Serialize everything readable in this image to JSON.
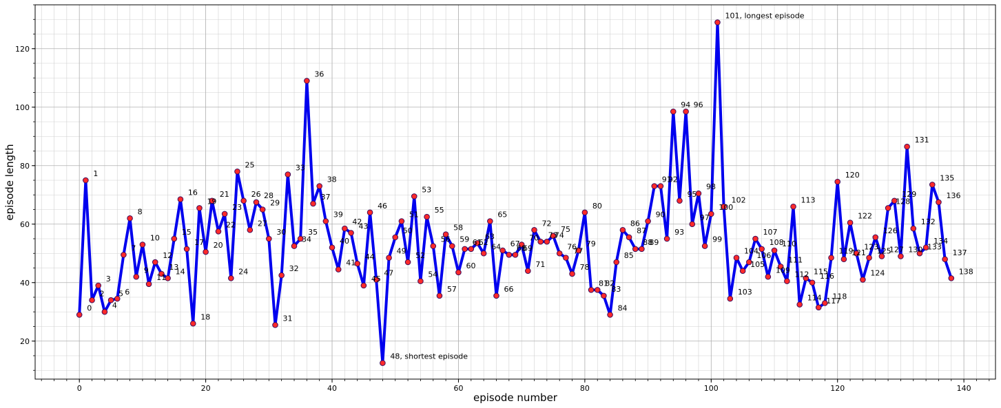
{
  "chart_data": {
    "type": "line",
    "title": "",
    "xlabel": "episode number",
    "ylabel": "episode length",
    "xlim": [
      -7,
      145
    ],
    "ylim": [
      7,
      135
    ],
    "xticks": [
      0,
      20,
      40,
      60,
      80,
      100,
      120,
      140
    ],
    "yticks": [
      20,
      40,
      60,
      80,
      100,
      120
    ],
    "xminor_step": 2,
    "yminor_step": 5,
    "grid": true,
    "line_color": "#0000ee",
    "marker_fill": "#ff2a2a",
    "marker_edge": "#3a0a5a",
    "series": [
      {
        "x": [
          0,
          1,
          2,
          3,
          4,
          5,
          6,
          7,
          8,
          9,
          10,
          11,
          12,
          13,
          14,
          15,
          16,
          17,
          18,
          19,
          20,
          21,
          22,
          23,
          24,
          25,
          26,
          27,
          28,
          29,
          30,
          31,
          32,
          33,
          34,
          35,
          36,
          37,
          38,
          39,
          40,
          41,
          42,
          43,
          44,
          45,
          46,
          47,
          48,
          49,
          50,
          51,
          52,
          53,
          54,
          55,
          56,
          57,
          58,
          59,
          60,
          61,
          62,
          63,
          64,
          65,
          66,
          67,
          68,
          69,
          70,
          71,
          72,
          73,
          74,
          75,
          76,
          77,
          78,
          79,
          80,
          81,
          82,
          83,
          84,
          85,
          86,
          87,
          88,
          89,
          90,
          91,
          92,
          93,
          94,
          95,
          96,
          97,
          98,
          99,
          100,
          101,
          102,
          103,
          104,
          105,
          106,
          107,
          108,
          109,
          110,
          111,
          112,
          113,
          114,
          115,
          116,
          117,
          118,
          119,
          120,
          121,
          122,
          123,
          124,
          125,
          126,
          127,
          128,
          129,
          130,
          131,
          132,
          133,
          134,
          135,
          136,
          137,
          138
        ],
        "values": [
          29,
          75,
          34,
          39,
          30,
          34,
          34.5,
          49.5,
          62,
          42,
          53,
          39.5,
          47,
          43,
          41.5,
          55,
          68.5,
          51.5,
          26,
          65.5,
          50.5,
          68,
          57.5,
          63.5,
          41.5,
          78,
          68,
          58,
          67.5,
          65,
          55,
          25.5,
          42.5,
          77,
          52.5,
          55,
          109,
          67,
          73,
          61,
          52,
          44.5,
          58.5,
          57,
          46.5,
          39,
          64,
          41,
          12.5,
          48.5,
          55.5,
          61,
          47,
          69.5,
          40.5,
          62.5,
          52.5,
          35.5,
          56.5,
          52.5,
          43.5,
          51.5,
          51.5,
          53.5,
          50,
          61,
          35.5,
          51,
          49.5,
          49.5,
          53,
          44,
          58,
          54,
          54,
          56,
          50,
          48.5,
          43,
          51,
          64,
          37.5,
          37.5,
          35.5,
          29,
          47,
          58,
          55.5,
          51.5,
          51.5,
          61,
          73,
          73,
          55,
          98.5,
          68,
          98.5,
          60,
          70.5,
          52.5,
          63.5,
          129,
          66,
          34.5,
          48.5,
          44,
          47,
          55,
          51.5,
          42,
          51,
          45.5,
          40.5,
          66,
          32.5,
          41.5,
          40,
          31.5,
          33,
          48.5,
          74.5,
          48,
          60.5,
          50,
          41,
          48.5,
          55.5,
          49,
          65.5,
          68,
          49,
          86.5,
          58.5,
          50,
          52,
          73.5,
          67.5,
          48,
          41.5
        ]
      }
    ],
    "annotations": [
      {
        "x": 48,
        "text": "48, shortest episode"
      },
      {
        "x": 101,
        "text": "101, longest episode"
      }
    ]
  }
}
